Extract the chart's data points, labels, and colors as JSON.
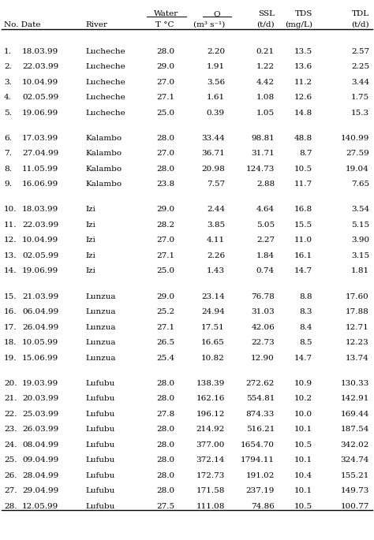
{
  "rows": [
    [
      "1.",
      "18.03.99",
      "Lucheche",
      "28.0",
      "2.20",
      "0.21",
      "13.5",
      "2.57"
    ],
    [
      "2.",
      "22.03.99",
      "Lucheche",
      "29.0",
      "1.91",
      "1.22",
      "13.6",
      "2.25"
    ],
    [
      "3.",
      "10.04.99",
      "Lucheche",
      "27.0",
      "3.56",
      "4.42",
      "11.2",
      "3.44"
    ],
    [
      "4.",
      "02.05.99",
      "Lucheche",
      "27.1",
      "1.61",
      "1.08",
      "12.6",
      "1.75"
    ],
    [
      "5.",
      "19.06.99",
      "Lucheche",
      "25.0",
      "0.39",
      "1.05",
      "14.8",
      "15.3"
    ],
    [
      "",
      "",
      "",
      "",
      "",
      "",
      "",
      ""
    ],
    [
      "6.",
      "17.03.99",
      "Kalambo",
      "28.0",
      "33.44",
      "98.81",
      "48.8",
      "140.99"
    ],
    [
      "7.",
      "27.04.99",
      "Kalambo",
      "27.0",
      "36.71",
      "31.71",
      "8.7",
      "27.59"
    ],
    [
      "8.",
      "11.05.99",
      "Kalambo",
      "28.0",
      "20.98",
      "124.73",
      "10.5",
      "19.04"
    ],
    [
      "9.",
      "16.06.99",
      "Kalambo",
      "23.8",
      "7.57",
      "2.88",
      "11.7",
      "7.65"
    ],
    [
      "",
      "",
      "",
      "",
      "",
      "",
      "",
      ""
    ],
    [
      "10.",
      "18.03.99",
      "Izi",
      "29.0",
      "2.44",
      "4.64",
      "16.8",
      "3.54"
    ],
    [
      "11.",
      "22.03.99",
      "Izi",
      "28.2",
      "3.85",
      "5.05",
      "15.5",
      "5.15"
    ],
    [
      "12.",
      "10.04.99",
      "Izi",
      "27.0",
      "4.11",
      "2.27",
      "11.0",
      "3.90"
    ],
    [
      "13.",
      "02.05.99",
      "Izi",
      "27.1",
      "2.26",
      "1.84",
      "16.1",
      "3.15"
    ],
    [
      "14.",
      "19.06.99",
      "Izi",
      "25.0",
      "1.43",
      "0.74",
      "14.7",
      "1.81"
    ],
    [
      "",
      "",
      "",
      "",
      "",
      "",
      "",
      ""
    ],
    [
      "15.",
      "21.03.99",
      "Lunzua",
      "29.0",
      "23.14",
      "76.78",
      "8.8",
      "17.60"
    ],
    [
      "16.",
      "06.04.99",
      "Lunzua",
      "25.2",
      "24.94",
      "31.03",
      "8.3",
      "17.88"
    ],
    [
      "17.",
      "26.04.99",
      "Lunzua",
      "27.1",
      "17.51",
      "42.06",
      "8.4",
      "12.71"
    ],
    [
      "18.",
      "10.05.99",
      "Lunzua",
      "26.5",
      "16.65",
      "22.73",
      "8.5",
      "12.23"
    ],
    [
      "19.",
      "15.06.99",
      "Lunzua",
      "25.4",
      "10.82",
      "12.90",
      "14.7",
      "13.74"
    ],
    [
      "",
      "",
      "",
      "",
      "",
      "",
      "",
      ""
    ],
    [
      "20.",
      "19.03.99",
      "Lufubu",
      "28.0",
      "138.39",
      "272.62",
      "10.9",
      "130.33"
    ],
    [
      "21.",
      "20.03.99",
      "Lufubu",
      "28.0",
      "162.16",
      "554.81",
      "10.2",
      "142.91"
    ],
    [
      "22.",
      "25.03.99",
      "Lufubu",
      "27.8",
      "196.12",
      "874.33",
      "10.0",
      "169.44"
    ],
    [
      "23.",
      "26.03.99",
      "Lufubu",
      "28.0",
      "214.92",
      "516.21",
      "10.1",
      "187.54"
    ],
    [
      "24.",
      "08.04.99",
      "Lufubu",
      "28.0",
      "377.00",
      "1654.70",
      "10.5",
      "342.02"
    ],
    [
      "25.",
      "09.04.99",
      "Lufubu",
      "28.0",
      "372.14",
      "1794.11",
      "10.1",
      "324.74"
    ],
    [
      "26.",
      "28.04.99",
      "Lufubu",
      "28.0",
      "172.73",
      "191.02",
      "10.4",
      "155.21"
    ],
    [
      "27.",
      "29.04.99",
      "Lufubu",
      "28.0",
      "171.58",
      "237.19",
      "10.1",
      "149.73"
    ],
    [
      "28.",
      "12.05.99",
      "Lufubu",
      "27.5",
      "111.08",
      "74.86",
      "10.5",
      "100.77"
    ]
  ],
  "bg_color": "#ffffff",
  "text_color": "#000000",
  "font_size": 7.5,
  "figwidth": 4.74,
  "figheight": 6.85,
  "dpi": 100
}
